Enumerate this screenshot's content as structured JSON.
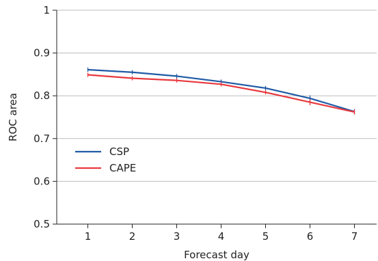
{
  "chart_data": {
    "type": "line",
    "xlabel": "Forecast day",
    "ylabel": "ROC area",
    "x": [
      1,
      2,
      3,
      4,
      5,
      6,
      7
    ],
    "xlim": [
      0.3,
      7.5
    ],
    "ylim": [
      0.5,
      1.0
    ],
    "yticks": [
      "0.5",
      "0.6",
      "0.7",
      "0.8",
      "0.9",
      "1"
    ],
    "xticks": [
      "1",
      "2",
      "3",
      "4",
      "5",
      "6",
      "7"
    ],
    "grid": "horizontal",
    "legend_position": "center-left",
    "series": [
      {
        "name": "CSP",
        "color": "#1f5aa6",
        "values": [
          0.861,
          0.855,
          0.846,
          0.833,
          0.818,
          0.794,
          0.763
        ],
        "error": [
          0.005,
          0.005,
          0.005,
          0.005,
          0.005,
          0.007,
          0.006
        ]
      },
      {
        "name": "CAPE",
        "color": "#e8383d",
        "values": [
          0.849,
          0.841,
          0.836,
          0.827,
          0.808,
          0.785,
          0.762
        ],
        "error": [
          0.005,
          0.005,
          0.005,
          0.005,
          0.005,
          0.007,
          0.006
        ]
      }
    ]
  }
}
